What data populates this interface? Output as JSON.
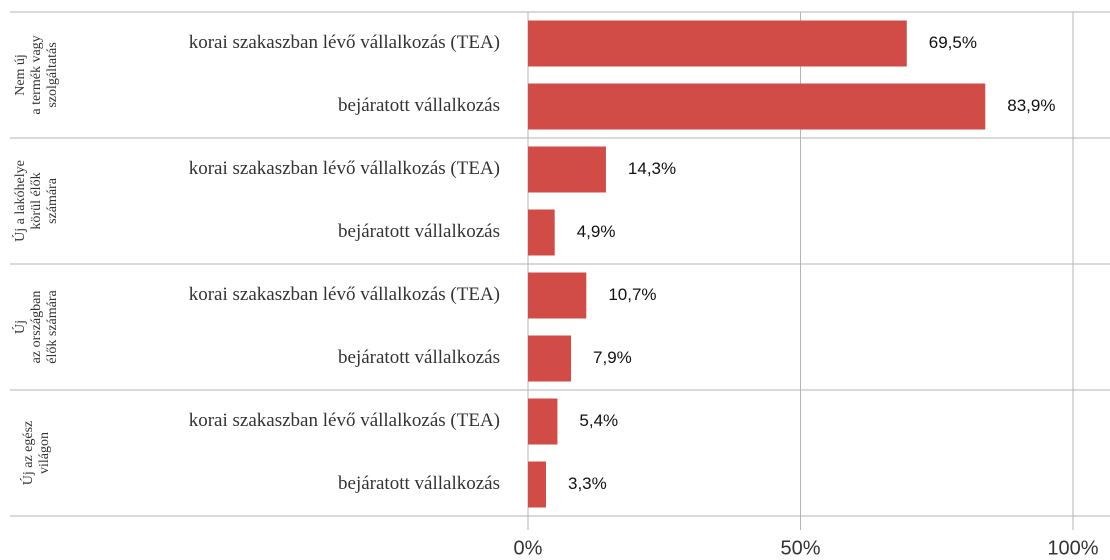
{
  "chart_data": {
    "type": "bar",
    "orientation": "horizontal",
    "color": "#d24c47",
    "xlim": [
      0,
      100
    ],
    "xticks": [
      {
        "value": 0,
        "label": "0%"
      },
      {
        "value": 50,
        "label": "50%"
      },
      {
        "value": 100,
        "label": "100%"
      }
    ],
    "grid": true,
    "groups": [
      {
        "label": [
          "Nem új",
          "a termék vagy",
          "szolgáltatás"
        ],
        "categories": [
          "korai szakaszban lévő vállalkozás (TEA)",
          "bejáratott vállalkozás"
        ],
        "values": [
          69.5,
          83.9
        ],
        "value_labels": [
          "69,5%",
          "83,9%"
        ]
      },
      {
        "label": [
          "Új a lakóhelye",
          "körül élők",
          "számára"
        ],
        "categories": [
          "korai szakaszban lévő vállalkozás (TEA)",
          "bejáratott vállalkozás"
        ],
        "values": [
          14.3,
          4.9
        ],
        "value_labels": [
          "14,3%",
          "4,9%"
        ]
      },
      {
        "label": [
          "Új",
          "az országban",
          "élők számára"
        ],
        "categories": [
          "korai szakaszban lévő vállalkozás (TEA)",
          "bejáratott vállalkozás"
        ],
        "values": [
          10.7,
          7.9
        ],
        "value_labels": [
          "10,7%",
          "7,9%"
        ]
      },
      {
        "label": [
          "Új az egész",
          "világon"
        ],
        "categories": [
          "korai szakaszban lévő vállalkozás (TEA)",
          "bejáratott vállalkozás"
        ],
        "values": [
          5.4,
          3.3
        ],
        "value_labels": [
          "5,4%",
          "3,3%"
        ]
      }
    ]
  }
}
